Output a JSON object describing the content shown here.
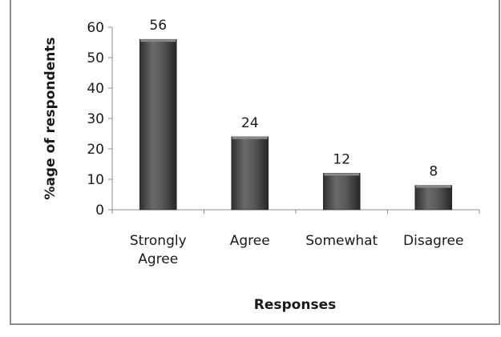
{
  "chart_data": {
    "type": "bar",
    "categories": [
      "Strongly Agree",
      "Agree",
      "Somewhat",
      "Disagree"
    ],
    "category_lines": [
      [
        "Strongly",
        "Agree"
      ],
      [
        "Agree"
      ],
      [
        "Somewhat"
      ],
      [
        "Disagree"
      ]
    ],
    "values": [
      56,
      24,
      12,
      8
    ],
    "title": "",
    "xlabel": "Responses",
    "ylabel": "%age of respondents",
    "ylim": [
      0,
      60
    ],
    "yticks": [
      0,
      10,
      20,
      30,
      40,
      50,
      60
    ],
    "grid": false,
    "legend": "none",
    "bar_color": "#4a4a4a",
    "data_labels": true
  }
}
